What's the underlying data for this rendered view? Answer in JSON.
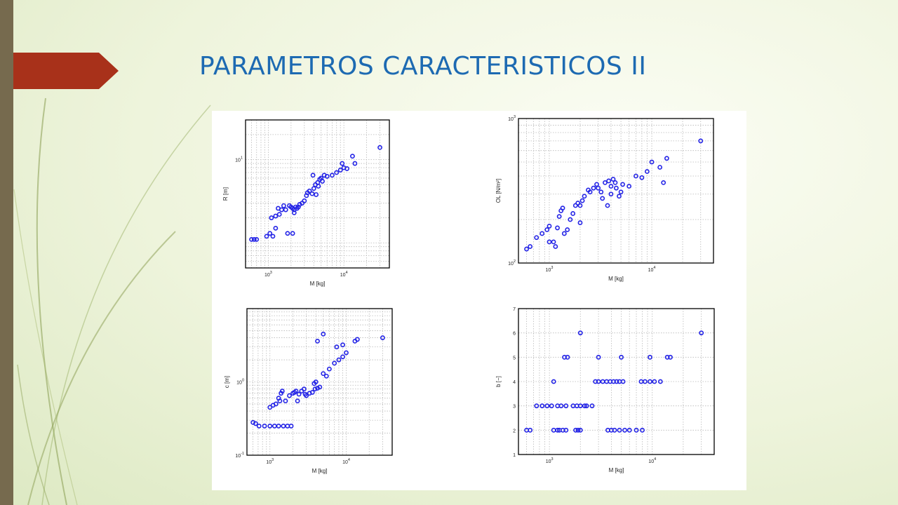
{
  "slide": {
    "title": "PARAMETROS CARACTERISTICOS II",
    "colors": {
      "title": "#1d6ab2",
      "arrow": "#a8311a",
      "bar": "#766a4e",
      "marker": "#2323e6"
    }
  },
  "chart_data": [
    {
      "type": "scatter",
      "position": "top-left",
      "xlabel": "M [kg]",
      "ylabel": "R [m]",
      "xscale": "log",
      "yscale": "log",
      "xlim": [
        500,
        40000
      ],
      "ylim": [
        0.5,
        30
      ],
      "xticks": [
        {
          "base": "10",
          "exp": "3",
          "value": 1000
        },
        {
          "base": "10",
          "exp": "4",
          "value": 10000
        }
      ],
      "yticks": [
        {
          "base": "10",
          "exp": "1",
          "value": 10
        }
      ],
      "grid": true,
      "series": [
        {
          "marker": "circle",
          "color": "#2323e6",
          "x": [
            600,
            650,
            700,
            950,
            1050,
            1150,
            1250,
            1100,
            1400,
            1500,
            1600,
            1350,
            1250,
            1700,
            1900,
            2000,
            2100,
            2200,
            2300,
            2400,
            2500,
            2200,
            2600,
            2800,
            3000,
            3200,
            3500,
            3800,
            4000,
            4200,
            4500,
            4800,
            5000,
            4300,
            4600,
            5200,
            5500,
            6000,
            7000,
            8000,
            9000,
            10000,
            9500,
            11000,
            13000,
            14000,
            30000,
            3300,
            3900,
            2100,
            1800
          ],
          "y": [
            1.1,
            1.1,
            1.1,
            1.2,
            1.3,
            1.2,
            1.5,
            2.0,
            2.2,
            2.5,
            2.8,
            2.6,
            2.1,
            2.5,
            2.8,
            2.7,
            2.6,
            2.5,
            2.7,
            2.6,
            2.7,
            2.3,
            2.9,
            3.0,
            3.2,
            3.7,
            4.2,
            3.9,
            4.5,
            5.0,
            5.3,
            5.8,
            6.0,
            3.8,
            4.8,
            5.5,
            6.5,
            6.3,
            6.5,
            7.0,
            7.5,
            8.0,
            9.0,
            7.8,
            11.0,
            9.0,
            14.0,
            4.0,
            6.5,
            1.3,
            1.3
          ]
        }
      ]
    },
    {
      "type": "scatter",
      "position": "top-right",
      "xlabel": "M [kg]",
      "ylabel": "OL [N/m²]",
      "xscale": "log",
      "yscale": "log",
      "xlim": [
        500,
        40000
      ],
      "ylim": [
        100,
        1000
      ],
      "xticks": [
        {
          "base": "10",
          "exp": "3",
          "value": 1000
        },
        {
          "base": "10",
          "exp": "4",
          "value": 10000
        }
      ],
      "yticks": [
        {
          "base": "10",
          "exp": "2",
          "value": 100
        },
        {
          "base": "10",
          "exp": "3",
          "value": 1000
        }
      ],
      "grid": true,
      "series": [
        {
          "marker": "circle",
          "color": "#2323e6",
          "x": [
            600,
            650,
            750,
            850,
            950,
            1100,
            1000,
            1200,
            1250,
            1300,
            1350,
            1150,
            1500,
            1600,
            1700,
            1800,
            1900,
            2000,
            2100,
            2200,
            2400,
            2500,
            2700,
            2900,
            3000,
            3200,
            3500,
            3800,
            4000,
            4200,
            4500,
            4800,
            5000,
            5200,
            3300,
            3700,
            4400,
            4000,
            6000,
            7000,
            8000,
            9000,
            10000,
            12000,
            13000,
            14000,
            30000,
            2000,
            1400,
            1000
          ],
          "y": [
            125,
            130,
            150,
            160,
            170,
            140,
            180,
            175,
            210,
            230,
            240,
            130,
            170,
            200,
            220,
            250,
            260,
            250,
            270,
            290,
            320,
            310,
            330,
            350,
            330,
            310,
            360,
            370,
            340,
            380,
            330,
            290,
            310,
            350,
            280,
            250,
            360,
            300,
            340,
            400,
            390,
            430,
            500,
            460,
            360,
            530,
            700,
            190,
            160,
            140
          ]
        }
      ]
    },
    {
      "type": "scatter",
      "position": "bottom-left",
      "xlabel": "M [kg]",
      "ylabel": "c [m]",
      "xscale": "log",
      "yscale": "log",
      "xlim": [
        500,
        40000
      ],
      "ylim": [
        0.1,
        10
      ],
      "xticks": [
        {
          "base": "10",
          "exp": "3",
          "value": 1000
        },
        {
          "base": "10",
          "exp": "4",
          "value": 10000
        }
      ],
      "yticks": [
        {
          "base": "10",
          "exp": "0",
          "value": 1
        },
        {
          "base": "10",
          "exp": "-1",
          "value": 0.1
        }
      ],
      "grid": true,
      "series": [
        {
          "marker": "circle",
          "color": "#2323e6",
          "x": [
            600,
            650,
            720,
            850,
            1000,
            1150,
            1300,
            1500,
            1700,
            1900,
            1000,
            1100,
            1200,
            1300,
            1400,
            1450,
            1350,
            1600,
            1800,
            2000,
            2100,
            2200,
            2400,
            2600,
            2800,
            2900,
            2300,
            3000,
            3300,
            3600,
            3900,
            4200,
            4500,
            4000,
            5000,
            5500,
            3800,
            6000,
            7000,
            8000,
            9000,
            10000,
            9000,
            13000,
            14000,
            30000,
            4200,
            5000,
            7500
          ],
          "y": [
            0.28,
            0.27,
            0.25,
            0.25,
            0.25,
            0.25,
            0.25,
            0.25,
            0.25,
            0.25,
            0.45,
            0.48,
            0.5,
            0.6,
            0.7,
            0.75,
            0.55,
            0.55,
            0.65,
            0.7,
            0.72,
            0.75,
            0.68,
            0.75,
            0.8,
            0.68,
            0.55,
            0.65,
            0.7,
            0.72,
            0.8,
            0.82,
            0.85,
            1.0,
            1.3,
            1.2,
            0.95,
            1.5,
            1.8,
            2.0,
            2.2,
            2.5,
            3.2,
            3.6,
            3.8,
            4.0,
            3.6,
            4.5,
            3.0
          ]
        }
      ]
    },
    {
      "type": "scatter",
      "position": "bottom-right",
      "xlabel": "M [kg]",
      "ylabel": "b [−]",
      "xscale": "log",
      "yscale": "linear",
      "xlim": [
        500,
        40000
      ],
      "ylim": [
        1,
        7
      ],
      "xticks": [
        {
          "base": "10",
          "exp": "3",
          "value": 1000
        },
        {
          "base": "10",
          "exp": "4",
          "value": 10000
        }
      ],
      "yticks": [
        {
          "label": "1",
          "value": 1
        },
        {
          "label": "2",
          "value": 2
        },
        {
          "label": "3",
          "value": 3
        },
        {
          "label": "4",
          "value": 4
        },
        {
          "label": "5",
          "value": 5
        },
        {
          "label": "6",
          "value": 6
        },
        {
          "label": "7",
          "value": 7
        }
      ],
      "grid": true,
      "series": [
        {
          "marker": "circle",
          "color": "#2323e6",
          "x": [
            600,
            650,
            1100,
            1200,
            1250,
            1350,
            1450,
            1800,
            1900,
            2000,
            3700,
            4000,
            4300,
            4800,
            5400,
            6000,
            7000,
            8000,
            750,
            850,
            950,
            1050,
            1200,
            1300,
            1450,
            1700,
            1850,
            2000,
            2200,
            2300,
            2600,
            1100,
            2800,
            3000,
            3300,
            3600,
            3900,
            4200,
            4500,
            4800,
            5200,
            7800,
            8500,
            9500,
            10500,
            12000,
            1400,
            1500,
            3000,
            5000,
            9500,
            14000,
            15000,
            2000,
            30000
          ],
          "y": [
            2,
            2,
            2,
            2,
            2,
            2,
            2,
            2,
            2,
            2,
            2,
            2,
            2,
            2,
            2,
            2,
            2,
            2,
            3,
            3,
            3,
            3,
            3,
            3,
            3,
            3,
            3,
            3,
            3,
            3,
            3,
            4,
            4,
            4,
            4,
            4,
            4,
            4,
            4,
            4,
            4,
            4,
            4,
            4,
            4,
            4,
            5,
            5,
            5,
            5,
            5,
            5,
            5,
            6,
            6
          ]
        }
      ]
    }
  ]
}
